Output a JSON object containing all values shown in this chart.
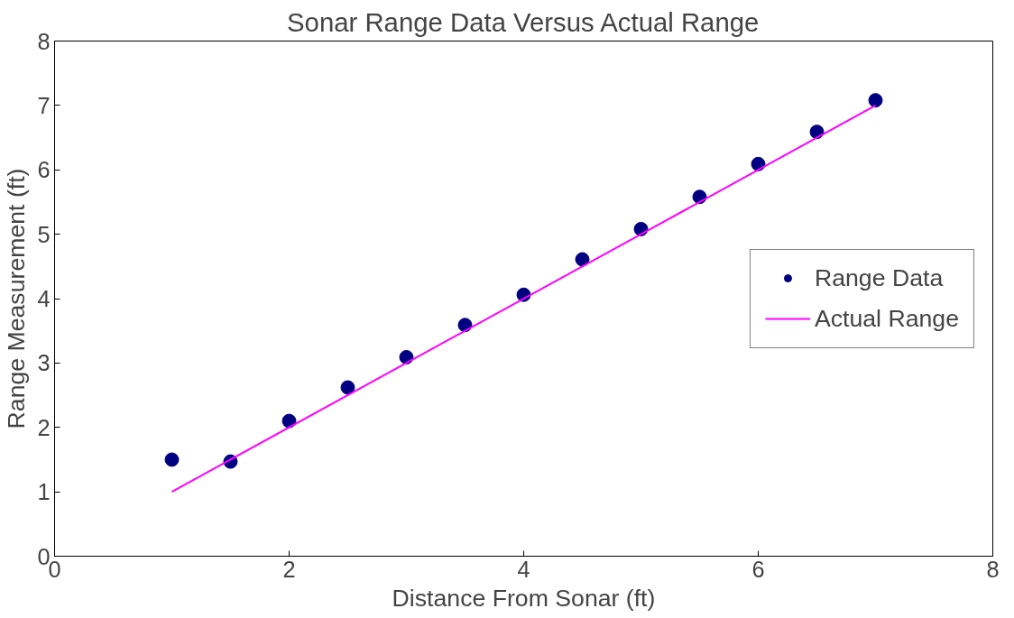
{
  "chart_data": {
    "type": "scatter",
    "title": "Sonar Range Data Versus Actual Range",
    "xlabel": "Distance From Sonar (ft)",
    "ylabel": "Range Measurement (ft)",
    "xlim": [
      0,
      8
    ],
    "xticks": [
      0,
      2,
      4,
      6,
      8
    ],
    "ylim": [
      0,
      8
    ],
    "yticks": [
      0,
      1,
      2,
      3,
      4,
      5,
      6,
      7,
      8
    ],
    "grid": false,
    "legend": "right",
    "marker": "circle",
    "series": [
      {
        "name": "Range Data",
        "color": "#000080",
        "x": [
          1,
          1.5,
          2,
          2.5,
          3,
          3.5,
          4,
          4.5,
          5,
          5.5,
          6,
          6.5,
          7
        ],
        "values": [
          1.5,
          1.47,
          2.1,
          2.62,
          3.09,
          3.59,
          4.06,
          4.61,
          5.08,
          5.58,
          6.09,
          6.59,
          7.08
        ]
      },
      {
        "name": "Actual Range",
        "type": "line",
        "color": "#ff00ff",
        "x": [
          1,
          7
        ],
        "values": [
          1,
          7
        ],
        "marker": "none",
        "line_style": "solid"
      }
    ]
  }
}
